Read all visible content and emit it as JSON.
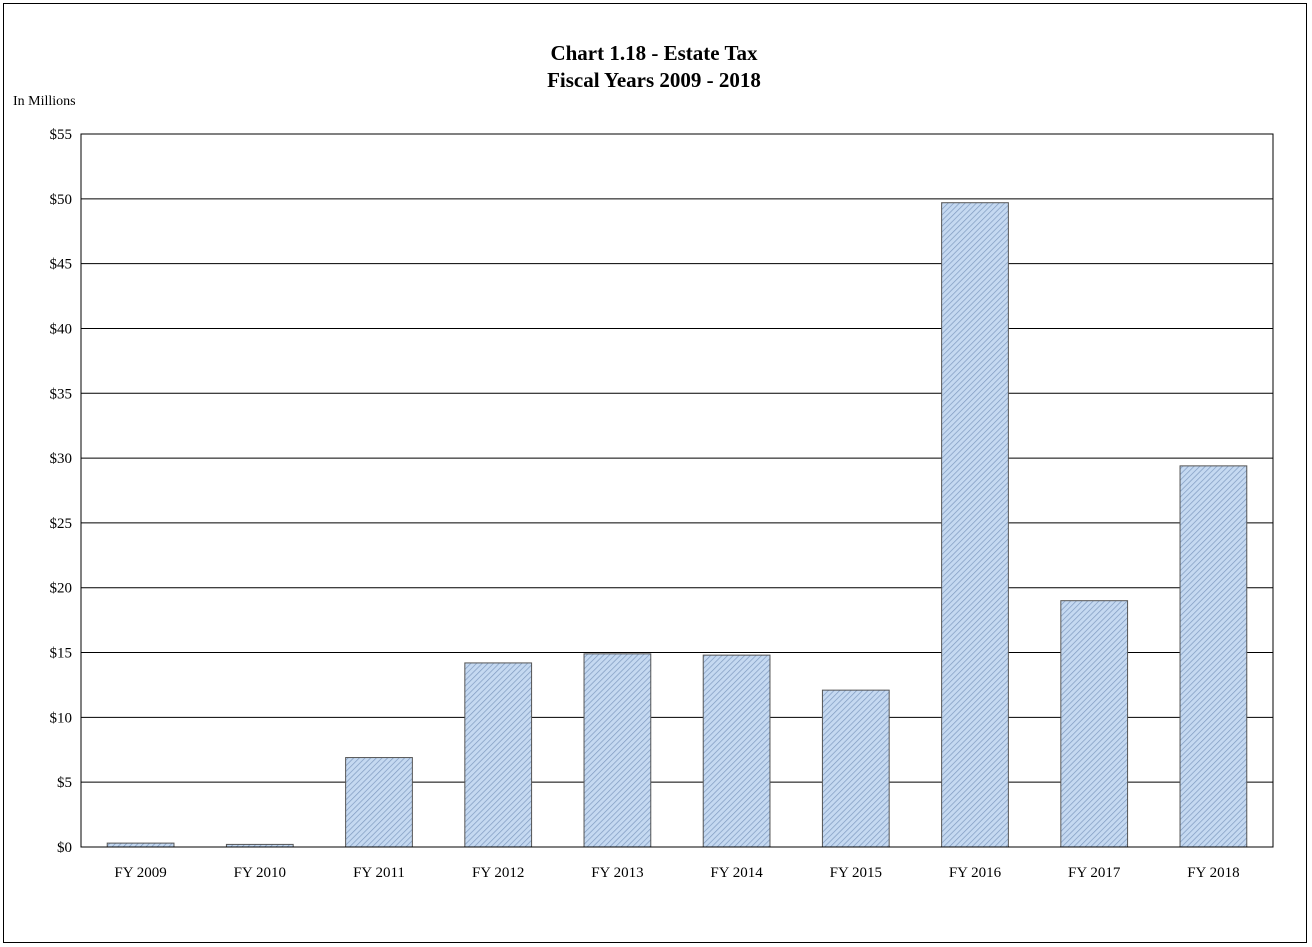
{
  "chart_data": {
    "type": "bar",
    "title": "Chart 1.18 - Estate Tax",
    "subtitle": "Fiscal Years 2009 - 2018",
    "ylabel": "In Millions",
    "xlabel": "",
    "categories": [
      "FY 2009",
      "FY 2010",
      "FY 2011",
      "FY 2012",
      "FY 2013",
      "FY 2014",
      "FY 2015",
      "FY 2016",
      "FY 2017",
      "FY 2018"
    ],
    "values": [
      0.3,
      0.2,
      6.9,
      14.2,
      14.9,
      14.8,
      12.1,
      49.7,
      19.0,
      29.4
    ],
    "ylim": [
      0,
      55
    ],
    "ytick_step": 5,
    "ytick_labels": [
      "$0",
      "$5",
      "$10",
      "$15",
      "$20",
      "$25",
      "$30",
      "$35",
      "$40",
      "$45",
      "$50",
      "$55"
    ],
    "grid": true,
    "legend": "none",
    "bar_fill": "#c5d9f1",
    "bar_hatch": "#7f9ac0",
    "bar_stroke": "#555555"
  }
}
